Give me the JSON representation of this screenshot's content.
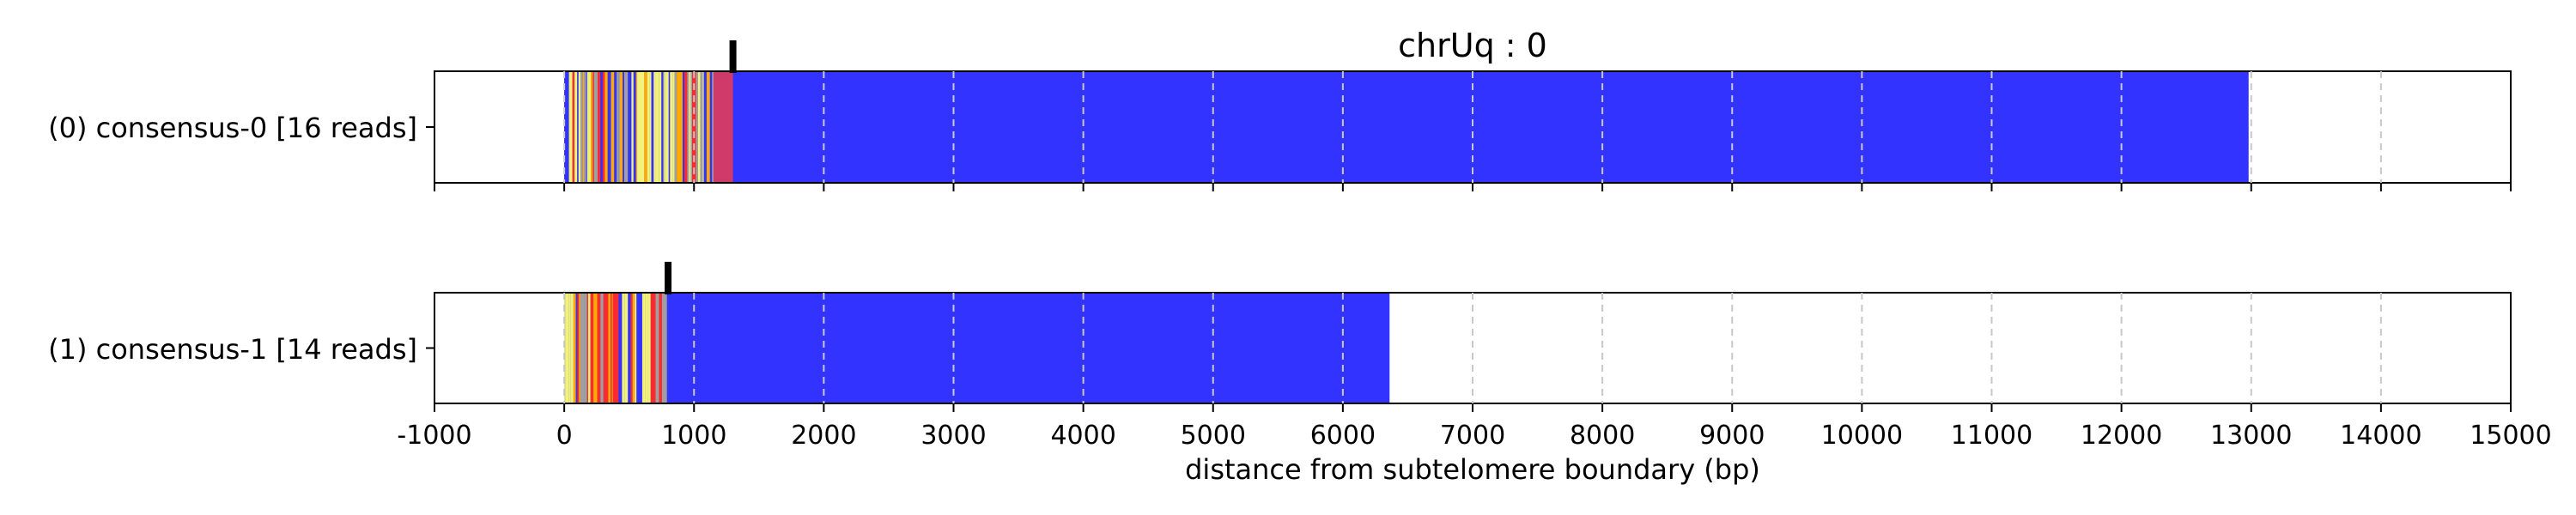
{
  "chart_data": {
    "type": "bar",
    "title": "chrUq : 0",
    "xlabel": "distance from subtelomere boundary (bp)",
    "ylabel": "",
    "xlim": [
      -1000,
      15000
    ],
    "xticks": [
      -1000,
      0,
      1000,
      2000,
      3000,
      4000,
      5000,
      6000,
      7000,
      8000,
      9000,
      10000,
      11000,
      12000,
      13000,
      14000,
      15000
    ],
    "grid": "vertical-dashed",
    "colors": {
      "telomere": "#3333ff",
      "variant_yellow": "#f2f27a",
      "variant_red": "#ff2a2a",
      "variant_orange": "#ffaa00",
      "variant_gray": "#a0a0a0",
      "variant_magenta": "#d03a6a",
      "marker": "#000000",
      "grid": "#c8c8c8"
    },
    "tracks": [
      {
        "label": "(0) consensus-0 [16 reads]",
        "marker_bp": 1300,
        "telomere_range": [
          1180,
          12980
        ],
        "variant_region": [
          0,
          1180
        ],
        "magenta_region": [
          1150,
          1300
        ]
      },
      {
        "label": "(1) consensus-1 [14 reads]",
        "marker_bp": 800,
        "telomere_range": [
          800,
          6360
        ],
        "variant_region": [
          0,
          800
        ],
        "magenta_region": null
      }
    ]
  }
}
